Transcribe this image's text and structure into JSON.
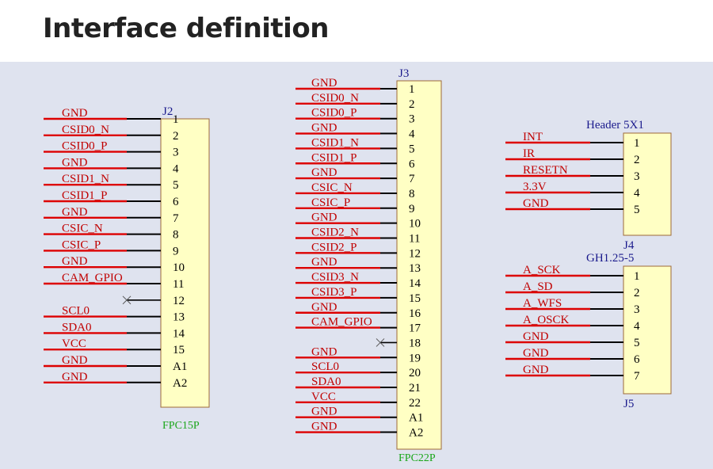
{
  "page_title": "Interface definition",
  "connectors": [
    {
      "id": "j2",
      "ref": "J2",
      "footer": "FPC15P",
      "pins": [
        {
          "signal": "GND",
          "num": "1"
        },
        {
          "signal": "CSID0_N",
          "num": "2"
        },
        {
          "signal": "CSID0_P",
          "num": "3"
        },
        {
          "signal": "GND",
          "num": "4"
        },
        {
          "signal": "CSID1_N",
          "num": "5"
        },
        {
          "signal": "CSID1_P",
          "num": "6"
        },
        {
          "signal": "GND",
          "num": "7"
        },
        {
          "signal": "CSIC_N",
          "num": "8"
        },
        {
          "signal": "CSIC_P",
          "num": "9"
        },
        {
          "signal": "GND",
          "num": "10"
        },
        {
          "signal": "CAM_GPIO",
          "num": "11"
        },
        {
          "signal": "",
          "num": "12",
          "nc": true
        },
        {
          "signal": "SCL0",
          "num": "13"
        },
        {
          "signal": "SDA0",
          "num": "14"
        },
        {
          "signal": "VCC",
          "num": "15"
        },
        {
          "signal": "GND",
          "num": "A1"
        },
        {
          "signal": "GND",
          "num": "A2"
        }
      ]
    },
    {
      "id": "j3",
      "ref": "J3",
      "footer": "FPC22P",
      "pins": [
        {
          "signal": "GND",
          "num": "1"
        },
        {
          "signal": "CSID0_N",
          "num": "2"
        },
        {
          "signal": "CSID0_P",
          "num": "3"
        },
        {
          "signal": "GND",
          "num": "4"
        },
        {
          "signal": "CSID1_N",
          "num": "5"
        },
        {
          "signal": "CSID1_P",
          "num": "6"
        },
        {
          "signal": "GND",
          "num": "7"
        },
        {
          "signal": "CSIC_N",
          "num": "8"
        },
        {
          "signal": "CSIC_P",
          "num": "9"
        },
        {
          "signal": "GND",
          "num": "10"
        },
        {
          "signal": "CSID2_N",
          "num": "11"
        },
        {
          "signal": "CSID2_P",
          "num": "12"
        },
        {
          "signal": "GND",
          "num": "13"
        },
        {
          "signal": "CSID3_N",
          "num": "14"
        },
        {
          "signal": "CSID3_P",
          "num": "15"
        },
        {
          "signal": "GND",
          "num": "16"
        },
        {
          "signal": "CAM_GPIO",
          "num": "17"
        },
        {
          "signal": "",
          "num": "18",
          "nc": true
        },
        {
          "signal": "GND",
          "num": "19"
        },
        {
          "signal": "SCL0",
          "num": "20"
        },
        {
          "signal": "SDA0",
          "num": "21"
        },
        {
          "signal": "VCC",
          "num": "22"
        },
        {
          "signal": "GND",
          "num": "A1"
        },
        {
          "signal": "GND",
          "num": "A2"
        }
      ]
    },
    {
      "id": "j4",
      "ref": "J4",
      "header": "Header 5X1",
      "pins": [
        {
          "signal": "INT",
          "num": "1"
        },
        {
          "signal": "IR",
          "num": "2"
        },
        {
          "signal": "RESETN",
          "num": "3"
        },
        {
          "signal": "3.3V",
          "num": "4"
        },
        {
          "signal": "GND",
          "num": "5"
        }
      ]
    },
    {
      "id": "j5",
      "ref": "J5",
      "header": "GH1.25-5",
      "pins": [
        {
          "signal": "A_SCK",
          "num": "1"
        },
        {
          "signal": "A_SD",
          "num": "2"
        },
        {
          "signal": "A_WFS",
          "num": "3"
        },
        {
          "signal": "A_OSCK",
          "num": "4"
        },
        {
          "signal": "GND",
          "num": "5"
        },
        {
          "signal": "GND",
          "num": "6"
        },
        {
          "signal": "GND",
          "num": "7"
        }
      ]
    }
  ],
  "colors": {
    "body_fill": "#ffffc4",
    "signal_text": "#c00000",
    "wire_red": "#dd0000",
    "wire_black": "#000000",
    "ref_text": "#1a1a8c",
    "footer_text": "#1aa61a",
    "background": "#dfe3ef"
  }
}
